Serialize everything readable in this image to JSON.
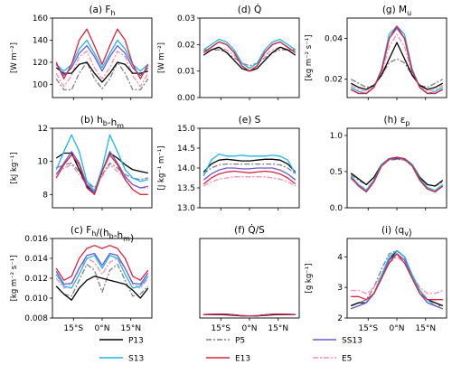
{
  "panels": [
    {
      "id": "a",
      "title": "(a) F",
      "title_sub": "h",
      "title_pre": "",
      "ylabel": "[W m⁻²]",
      "ylim": [
        88,
        160
      ],
      "yticks": [
        "160",
        "140",
        "120",
        "100"
      ],
      "ytick_vals": [
        160,
        140,
        120,
        100
      ]
    },
    {
      "id": "d",
      "title": "(d) Q̇",
      "title_sub": "",
      "ylabel": "[W m⁻²]",
      "ylim": [
        0,
        0.03
      ],
      "yticks": [
        "0.03",
        "0.02",
        "0.01",
        "0.00"
      ],
      "ytick_vals": [
        0.03,
        0.02,
        0.01,
        0.0
      ]
    },
    {
      "id": "g",
      "title": "(g) M",
      "title_sub": "u",
      "ylabel": "[kg m⁻² s⁻¹]",
      "ylim": [
        0.011,
        0.05
      ],
      "yticks": [
        "0.04",
        "0.02"
      ],
      "ytick_vals": [
        0.04,
        0.02
      ]
    },
    {
      "id": "b",
      "title": "(b) h",
      "title_sub": "b",
      "title_tail": "-h",
      "title_sub2": "m",
      "ylabel": "[kJ kg⁻¹]",
      "ylim": [
        7.2,
        12
      ],
      "yticks": [
        "12",
        "10",
        "8"
      ],
      "ytick_vals": [
        12,
        10,
        8
      ]
    },
    {
      "id": "e",
      "title": "(e) S",
      "title_sub": "",
      "ylabel": "[J kg⁻¹ m⁻¹]",
      "ylim": [
        13,
        15
      ],
      "yticks": [
        "15.0",
        "14.5",
        "14.0",
        "13.5",
        "13.0"
      ],
      "ytick_vals": [
        15,
        14.5,
        14,
        13.5,
        13
      ]
    },
    {
      "id": "h",
      "title": "(h) ε",
      "title_sub": "p",
      "ylabel": "",
      "ylim": [
        0,
        1.1
      ],
      "yticks": [
        "1.0",
        "0.5",
        "0.0"
      ],
      "ytick_vals": [
        1.0,
        0.5,
        0.0
      ]
    },
    {
      "id": "c",
      "title": "(c) F",
      "title_sub": "h",
      "title_tail": "/(h",
      "title_sub2": "b",
      "title_tail2": "-h",
      "title_sub3": "m",
      "title_tail3": ")",
      "ylabel": "[kg m⁻² s⁻¹]",
      "ylim": [
        0.008,
        0.016
      ],
      "yticks": [
        "0.016",
        "0.014",
        "0.012",
        "0.010",
        "0.008"
      ],
      "ytick_vals": [
        0.016,
        0.014,
        0.012,
        0.01,
        0.008
      ]
    },
    {
      "id": "f",
      "title": "(f) Q̇/S",
      "title_sub": "",
      "ylabel": "",
      "ylim": [
        0,
        0.03
      ],
      "yticks": [],
      "ytick_vals": []
    },
    {
      "id": "i",
      "title": "(i) ⟨q",
      "title_sub": "v",
      "title_tail": "⟩",
      "ylabel": "[g kg⁻¹]",
      "ylim": [
        2,
        4.6
      ],
      "yticks": [
        "4",
        "3",
        "2"
      ],
      "ytick_vals": [
        4,
        3,
        2
      ]
    }
  ],
  "x_ticks": [
    "15°S",
    "0°N",
    "15°N"
  ],
  "legend": [
    {
      "name": "P13",
      "color": "#000000",
      "dash": ""
    },
    {
      "name": "S13",
      "color": "#1fb6e8",
      "dash": ""
    },
    {
      "name": "P5",
      "color": "#808080",
      "dash": "6,2,2,2"
    },
    {
      "name": "E13",
      "color": "#d7263d",
      "dash": ""
    },
    {
      "name": "SS13",
      "color": "#6a5acd",
      "dash": ""
    },
    {
      "name": "E5",
      "color": "#f48fb1",
      "dash": "6,2,2,2"
    }
  ],
  "chart_data": {
    "type": "line",
    "x": [
      -24,
      -20,
      -16,
      -12,
      -8,
      -4,
      0,
      4,
      8,
      12,
      16,
      20,
      24
    ],
    "panels": {
      "a": {
        "P13": [
          115,
          110,
          110,
          118,
          120,
          110,
          102,
          110,
          120,
          118,
          110,
          110,
          112
        ],
        "E13": [
          120,
          105,
          118,
          140,
          150,
          135,
          118,
          135,
          150,
          140,
          118,
          105,
          118
        ],
        "S13": [
          118,
          112,
          118,
          132,
          140,
          128,
          115,
          128,
          140,
          132,
          118,
          112,
          118
        ],
        "SS13": [
          118,
          108,
          115,
          128,
          135,
          125,
          112,
          125,
          135,
          128,
          115,
          108,
          115
        ],
        "P5": [
          105,
          95,
          95,
          110,
          120,
          105,
          96,
          105,
          120,
          110,
          95,
          95,
          105
        ],
        "E5": [
          110,
          98,
          108,
          125,
          130,
          115,
          105,
          115,
          130,
          125,
          108,
          98,
          110
        ]
      },
      "d": {
        "P13": [
          0.016,
          0.018,
          0.019,
          0.017,
          0.014,
          0.011,
          0.01,
          0.011,
          0.014,
          0.017,
          0.019,
          0.018,
          0.016
        ],
        "E13": [
          0.017,
          0.019,
          0.021,
          0.02,
          0.017,
          0.012,
          0.01,
          0.012,
          0.017,
          0.02,
          0.021,
          0.019,
          0.017
        ],
        "S13": [
          0.018,
          0.02,
          0.022,
          0.021,
          0.018,
          0.013,
          0.011,
          0.013,
          0.018,
          0.021,
          0.022,
          0.02,
          0.018
        ],
        "SS13": [
          0.017,
          0.019,
          0.021,
          0.02,
          0.017,
          0.012,
          0.01,
          0.012,
          0.017,
          0.02,
          0.021,
          0.019,
          0.017
        ],
        "P5": [
          0.018,
          0.018,
          0.018,
          0.017,
          0.015,
          0.013,
          0.012,
          0.013,
          0.015,
          0.017,
          0.018,
          0.018,
          0.018
        ],
        "E5": [
          0.017,
          0.018,
          0.019,
          0.018,
          0.016,
          0.013,
          0.011,
          0.013,
          0.016,
          0.018,
          0.019,
          0.018,
          0.017
        ]
      },
      "g": {
        "P13": [
          0.018,
          0.016,
          0.015,
          0.017,
          0.022,
          0.03,
          0.038,
          0.03,
          0.022,
          0.017,
          0.015,
          0.016,
          0.018
        ],
        "E13": [
          0.015,
          0.013,
          0.013,
          0.016,
          0.024,
          0.04,
          0.046,
          0.04,
          0.024,
          0.016,
          0.013,
          0.013,
          0.015
        ],
        "S13": [
          0.016,
          0.014,
          0.013,
          0.016,
          0.025,
          0.042,
          0.046,
          0.042,
          0.025,
          0.016,
          0.013,
          0.014,
          0.016
        ],
        "SS13": [
          0.015,
          0.013,
          0.013,
          0.016,
          0.024,
          0.04,
          0.045,
          0.04,
          0.024,
          0.016,
          0.013,
          0.013,
          0.015
        ],
        "P5": [
          0.02,
          0.018,
          0.016,
          0.017,
          0.022,
          0.028,
          0.03,
          0.028,
          0.022,
          0.017,
          0.016,
          0.018,
          0.02
        ],
        "E5": [
          0.017,
          0.015,
          0.014,
          0.016,
          0.023,
          0.036,
          0.042,
          0.036,
          0.023,
          0.016,
          0.014,
          0.015,
          0.017
        ]
      },
      "b": {
        "P13": [
          10.2,
          10.5,
          10.5,
          9.5,
          8.5,
          8.1,
          9.4,
          10.5,
          10.2,
          9.8,
          9.5,
          9.4,
          9.3
        ],
        "E13": [
          9.0,
          9.8,
          10.4,
          9.8,
          8.4,
          8.0,
          9.4,
          10.4,
          9.8,
          8.9,
          8.3,
          8.0,
          8.0
        ],
        "S13": [
          9.5,
          10.6,
          11.6,
          10.6,
          8.8,
          8.2,
          9.6,
          11.6,
          10.6,
          9.5,
          9.0,
          8.8,
          8.9
        ],
        "SS13": [
          9.2,
          9.9,
          10.6,
          9.9,
          8.6,
          8.1,
          9.4,
          10.6,
          9.9,
          9.1,
          8.6,
          8.4,
          8.5
        ],
        "P5": [
          9.6,
          9.8,
          9.9,
          9.4,
          8.8,
          8.4,
          9.2,
          9.9,
          9.6,
          9.2,
          9.0,
          8.9,
          9.0
        ],
        "E5": [
          9.3,
          9.6,
          9.8,
          9.2,
          8.6,
          8.3,
          9.1,
          9.8,
          9.4,
          9.0,
          8.6,
          8.4,
          8.4
        ]
      },
      "e": {
        "P13": [
          13.9,
          14.1,
          14.2,
          14.22,
          14.2,
          14.18,
          14.18,
          14.2,
          14.22,
          14.22,
          14.2,
          14.1,
          13.9
        ],
        "E13": [
          13.6,
          13.75,
          13.85,
          13.9,
          13.92,
          13.9,
          13.88,
          13.9,
          13.92,
          13.9,
          13.85,
          13.75,
          13.6
        ],
        "S13": [
          13.8,
          14.2,
          14.35,
          14.3,
          14.3,
          14.32,
          14.3,
          14.3,
          14.3,
          14.32,
          14.3,
          14.2,
          13.85
        ],
        "SS13": [
          13.7,
          13.85,
          13.95,
          14.0,
          14.0,
          13.98,
          13.98,
          14.0,
          14.0,
          14.0,
          13.95,
          13.85,
          13.7
        ],
        "P5": [
          13.85,
          14.0,
          14.08,
          14.1,
          14.1,
          14.1,
          14.1,
          14.1,
          14.1,
          14.1,
          14.08,
          14.0,
          13.85
        ],
        "E5": [
          13.55,
          13.65,
          13.72,
          13.75,
          13.78,
          13.78,
          13.78,
          13.78,
          13.78,
          13.75,
          13.72,
          13.65,
          13.55
        ]
      },
      "h": {
        "P13": [
          0.48,
          0.4,
          0.32,
          0.42,
          0.6,
          0.68,
          0.68,
          0.68,
          0.6,
          0.42,
          0.32,
          0.3,
          0.38
        ],
        "E13": [
          0.42,
          0.3,
          0.22,
          0.36,
          0.58,
          0.68,
          0.7,
          0.68,
          0.58,
          0.38,
          0.26,
          0.22,
          0.3
        ],
        "S13": [
          0.44,
          0.32,
          0.24,
          0.38,
          0.6,
          0.68,
          0.7,
          0.68,
          0.6,
          0.4,
          0.28,
          0.24,
          0.32
        ],
        "SS13": [
          0.42,
          0.3,
          0.22,
          0.36,
          0.58,
          0.67,
          0.69,
          0.67,
          0.58,
          0.38,
          0.26,
          0.22,
          0.3
        ],
        "P5": [
          0.46,
          0.38,
          0.32,
          0.42,
          0.58,
          0.66,
          0.67,
          0.66,
          0.58,
          0.42,
          0.32,
          0.3,
          0.36
        ],
        "E5": [
          0.4,
          0.32,
          0.26,
          0.38,
          0.58,
          0.67,
          0.69,
          0.67,
          0.58,
          0.4,
          0.28,
          0.24,
          0.32
        ]
      },
      "c": {
        "P13": [
          0.0112,
          0.0104,
          0.0098,
          0.011,
          0.0118,
          0.0122,
          0.012,
          0.0118,
          0.0116,
          0.0114,
          0.0108,
          0.01,
          0.011
        ],
        "E13": [
          0.013,
          0.0118,
          0.0122,
          0.014,
          0.015,
          0.0153,
          0.015,
          0.0153,
          0.015,
          0.014,
          0.0122,
          0.0118,
          0.0128
        ],
        "S13": [
          0.0124,
          0.0112,
          0.011,
          0.0124,
          0.014,
          0.0143,
          0.013,
          0.0143,
          0.014,
          0.0124,
          0.011,
          0.0112,
          0.0122
        ],
        "SS13": [
          0.0127,
          0.0114,
          0.0115,
          0.013,
          0.0143,
          0.0145,
          0.0133,
          0.0145,
          0.0143,
          0.013,
          0.0115,
          0.0114,
          0.0125
        ],
        "P5": [
          0.0112,
          0.0104,
          0.0102,
          0.0118,
          0.0134,
          0.0128,
          0.0106,
          0.0128,
          0.0134,
          0.0118,
          0.0102,
          0.0104,
          0.0112
        ],
        "E5": [
          0.012,
          0.011,
          0.0114,
          0.013,
          0.014,
          0.0136,
          0.0124,
          0.0136,
          0.014,
          0.013,
          0.0114,
          0.011,
          0.012
        ]
      },
      "f": {
        "P13": [
          0.0013,
          0.0013,
          0.0013,
          0.0012,
          0.001,
          0.0008,
          0.0007,
          0.0008,
          0.001,
          0.0012,
          0.0013,
          0.0013,
          0.0013
        ],
        "E13": [
          0.0013,
          0.0014,
          0.0015,
          0.0014,
          0.0012,
          0.0009,
          0.0007,
          0.0009,
          0.0012,
          0.0014,
          0.0015,
          0.0014,
          0.0013
        ],
        "S13": [
          0.0013,
          0.0014,
          0.0015,
          0.0015,
          0.0012,
          0.0009,
          0.0008,
          0.0009,
          0.0012,
          0.0015,
          0.0015,
          0.0014,
          0.0013
        ],
        "SS13": [
          0.0013,
          0.0014,
          0.0015,
          0.0014,
          0.0012,
          0.0009,
          0.0007,
          0.0009,
          0.0012,
          0.0014,
          0.0015,
          0.0014,
          0.0013
        ],
        "P5": [
          0.0013,
          0.0013,
          0.0013,
          0.0012,
          0.0011,
          0.0009,
          0.0008,
          0.0009,
          0.0011,
          0.0012,
          0.0013,
          0.0013,
          0.0013
        ],
        "E5": [
          0.0013,
          0.0013,
          0.0014,
          0.0013,
          0.0011,
          0.0009,
          0.0008,
          0.0009,
          0.0011,
          0.0013,
          0.0014,
          0.0013,
          0.0013
        ]
      },
      "i": {
        "P13": [
          2.4,
          2.5,
          2.5,
          2.8,
          3.3,
          3.9,
          4.2,
          4.0,
          3.4,
          2.9,
          2.6,
          2.5,
          2.4
        ],
        "E13": [
          2.7,
          2.7,
          2.6,
          2.8,
          3.3,
          3.8,
          4.1,
          3.8,
          3.3,
          2.8,
          2.6,
          2.6,
          2.6
        ],
        "S13": [
          2.3,
          2.4,
          2.5,
          2.8,
          3.4,
          4.0,
          4.2,
          4.0,
          3.4,
          2.9,
          2.6,
          2.4,
          2.3
        ],
        "SS13": [
          2.3,
          2.4,
          2.5,
          2.8,
          3.3,
          3.9,
          4.1,
          3.9,
          3.3,
          2.8,
          2.5,
          2.4,
          2.3
        ],
        "P5": [
          2.4,
          2.5,
          2.6,
          3.0,
          3.6,
          4.1,
          4.2,
          4.0,
          3.4,
          2.9,
          2.6,
          2.4,
          2.4
        ],
        "E5": [
          2.9,
          2.9,
          2.8,
          3.0,
          3.4,
          3.8,
          4.0,
          3.8,
          3.4,
          3.0,
          2.8,
          2.8,
          2.9
        ]
      }
    }
  }
}
